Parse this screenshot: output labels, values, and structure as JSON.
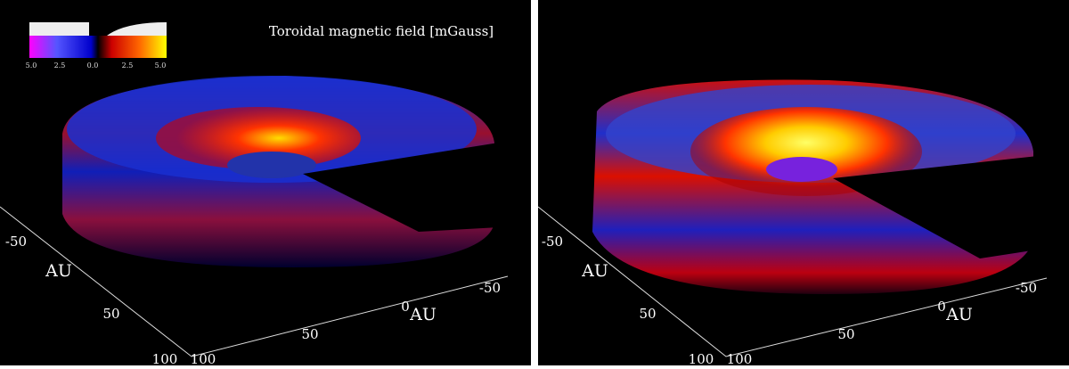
{
  "panels": [
    {
      "title": "Toroidal magnetic field [mGauss]",
      "colorbar": {
        "labels": [
          "5.0",
          "2.5",
          "0.0",
          "2.5",
          "5.0"
        ]
      },
      "axes": {
        "labels": [
          "-50",
          "AU",
          "50",
          "100",
          "100",
          "50",
          "0",
          "AU",
          "-50"
        ]
      }
    },
    {
      "axes": {
        "labels": [
          "-50",
          "AU",
          "50",
          "100",
          "100",
          "50",
          "0",
          "AU",
          "-50"
        ]
      }
    }
  ]
}
